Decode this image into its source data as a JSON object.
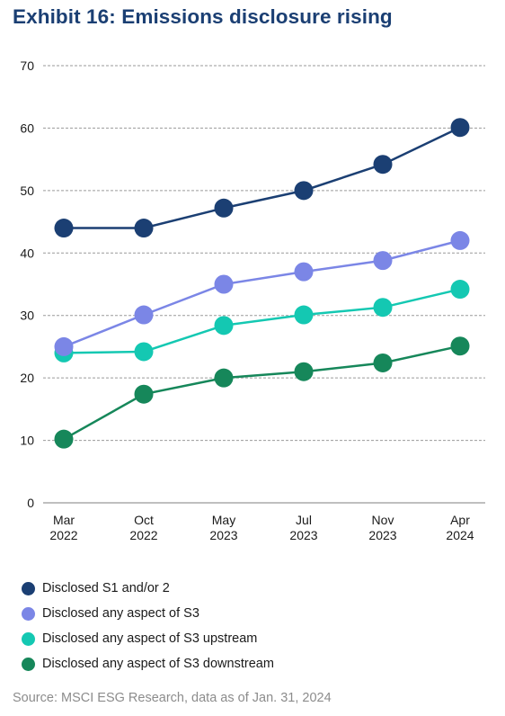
{
  "header": {
    "title": "Exhibit 16:  Emissions disclosure rising"
  },
  "footer": {
    "source": "Source: MSCI ESG Research, data as of Jan. 31, 2024"
  },
  "chart_data": {
    "type": "line",
    "title": "Exhibit 16:  Emissions disclosure rising",
    "xlabel": "",
    "ylabel": "",
    "categories": [
      [
        "Mar",
        "2022"
      ],
      [
        "Oct",
        "2022"
      ],
      [
        "May",
        "2023"
      ],
      [
        "Jul",
        "2023"
      ],
      [
        "Nov",
        "2023"
      ],
      [
        "Apr",
        "2024"
      ]
    ],
    "ylim": [
      0,
      70
    ],
    "yticks": [
      0,
      10,
      20,
      30,
      40,
      50,
      60,
      70
    ],
    "grid": "horizontal-dashed",
    "legend_position": "bottom-left",
    "series": [
      {
        "name": "Disclosed S1 and/or 2",
        "color": "#1b3f73",
        "values": [
          44,
          44,
          47.2,
          50,
          54.2,
          60.1
        ]
      },
      {
        "name": "Disclosed any aspect of S3",
        "color": "#7b86e6",
        "values": [
          25,
          30.1,
          35,
          37,
          38.8,
          42
        ]
      },
      {
        "name": "Disclosed any aspect of S3 upstream",
        "color": "#14c8b2",
        "values": [
          24,
          24.2,
          28.4,
          30.1,
          31.3,
          34.2
        ]
      },
      {
        "name": "Disclosed any aspect of S3 downstream",
        "color": "#16875a",
        "values": [
          10.2,
          17.4,
          20,
          21,
          22.4,
          25.1
        ]
      }
    ]
  }
}
